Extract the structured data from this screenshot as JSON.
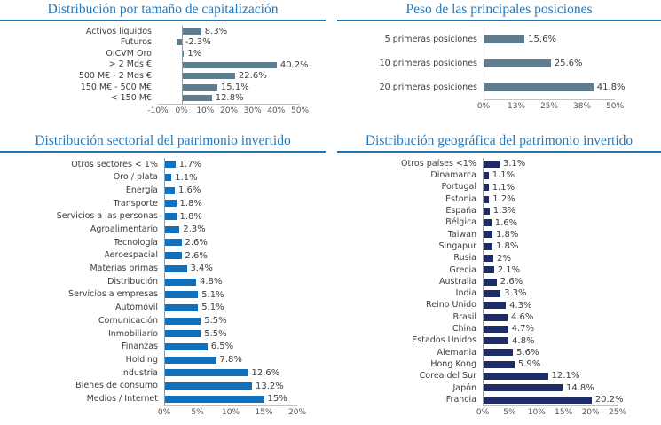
{
  "theme": {
    "title_color": "#2878b8",
    "rule_color": "#1e74b0",
    "label_color": "#3d3d3d",
    "value_color": "#3d3d3d",
    "tick_color": "#555555",
    "axis_line_color": "#9a9a9a",
    "baseline_color": "#c2c2c2",
    "background": "#ffffff"
  },
  "chart_data": [
    {
      "type": "bar",
      "orientation": "horizontal",
      "title": "Distribución por tamaño de capitalización",
      "bar_color": "#5e7d8e",
      "categories": [
        "Activos líquidos",
        "Futuros",
        "OICVM Oro",
        "> 2 Mds €",
        "500 M€ - 2 Mds €",
        "150 M€ - 500 M€",
        "< 150 M€"
      ],
      "values": [
        8.3,
        -2.3,
        1,
        40.2,
        22.6,
        15.1,
        12.8
      ],
      "labels": [
        "8.3%",
        "-2.3%",
        "1%",
        "40.2%",
        "22.6%",
        "15.1%",
        "12.8%"
      ],
      "xlim": [
        -10,
        50
      ],
      "tick_values": [
        -10,
        0,
        10,
        20,
        30,
        40,
        50
      ],
      "tick_labels": [
        "-10%",
        "0%",
        "10%",
        "20%",
        "30%",
        "40%",
        "50%"
      ],
      "grid": false,
      "legend": false
    },
    {
      "type": "bar",
      "orientation": "horizontal",
      "title": "Peso de las principales posiciones",
      "bar_color": "#5e7d8e",
      "categories": [
        "5 primeras posiciones",
        "10 primeras posiciones",
        "20 primeras posiciones"
      ],
      "values": [
        15.6,
        25.6,
        41.8
      ],
      "labels": [
        "15.6%",
        "25.6%",
        "41.8%"
      ],
      "xlim": [
        0,
        50
      ],
      "tick_values": [
        0,
        12.5,
        25,
        37.5,
        50
      ],
      "tick_labels": [
        "0%",
        "13%",
        "25%",
        "38%",
        "50%"
      ],
      "grid": false,
      "legend": false
    },
    {
      "type": "bar",
      "orientation": "horizontal",
      "title": "Distribución sectorial del patrimonio invertido",
      "bar_color": "#1070bb",
      "categories": [
        "Otros sectores < 1%",
        "Oro / plata",
        "Energía",
        "Transporte",
        "Servicios a las personas",
        "Agroalimentario",
        "Tecnología",
        "Aeroespacial",
        "Materias primas",
        "Distribución",
        "Servicios a empresas",
        "Automóvil",
        "Comunicación",
        "Inmobiliario",
        "Finanzas",
        "Holding",
        "Industria",
        "Bienes de consumo",
        "Medios / Internet"
      ],
      "values": [
        1.7,
        1.1,
        1.6,
        1.8,
        1.8,
        2.3,
        2.6,
        2.6,
        3.4,
        4.8,
        5.1,
        5.1,
        5.5,
        5.5,
        6.5,
        7.8,
        12.6,
        13.2,
        15
      ],
      "labels": [
        "1.7%",
        "1.1%",
        "1.6%",
        "1.8%",
        "1.8%",
        "2.3%",
        "2.6%",
        "2.6%",
        "3.4%",
        "4.8%",
        "5.1%",
        "5.1%",
        "5.5%",
        "5.5%",
        "6.5%",
        "7.8%",
        "12.6%",
        "13.2%",
        "15%"
      ],
      "xlim": [
        0,
        20
      ],
      "tick_values": [
        0,
        5,
        10,
        15,
        20
      ],
      "tick_labels": [
        "0%",
        "5%",
        "10%",
        "15%",
        "20%"
      ],
      "grid": false,
      "legend": false
    },
    {
      "type": "bar",
      "orientation": "horizontal",
      "title": "Distribución geográfica del patrimonio invertido",
      "bar_color": "#1d2c66",
      "categories": [
        "Otros países <1%",
        "Dinamarca",
        "Portugal",
        "Estonia",
        "España",
        "Bélgica",
        "Taiwan",
        "Singapur",
        "Rusia",
        "Grecia",
        "Australia",
        "India",
        "Reino Unido",
        "Brasil",
        "China",
        "Estados Unidos",
        "Alemania",
        "Hong Kong",
        "Corea del Sur",
        "Japón",
        "Francia"
      ],
      "values": [
        3.1,
        1.1,
        1.1,
        1.2,
        1.3,
        1.6,
        1.8,
        1.8,
        2,
        2.1,
        2.6,
        3.3,
        4.3,
        4.6,
        4.7,
        4.8,
        5.6,
        5.9,
        12.1,
        14.8,
        20.2
      ],
      "labels": [
        "3.1%",
        "1.1%",
        "1.1%",
        "1.2%",
        "1.3%",
        "1.6%",
        "1.8%",
        "1.8%",
        "2%",
        "2.1%",
        "2.6%",
        "3.3%",
        "4.3%",
        "4.6%",
        "4.7%",
        "4.8%",
        "5.6%",
        "5.9%",
        "12.1%",
        "14.8%",
        "20.2%"
      ],
      "xlim": [
        0,
        25
      ],
      "tick_values": [
        0,
        5,
        10,
        15,
        20,
        25
      ],
      "tick_labels": [
        "0%",
        "5%",
        "10%",
        "15%",
        "20%",
        "25%"
      ],
      "grid": false,
      "legend": false
    }
  ]
}
